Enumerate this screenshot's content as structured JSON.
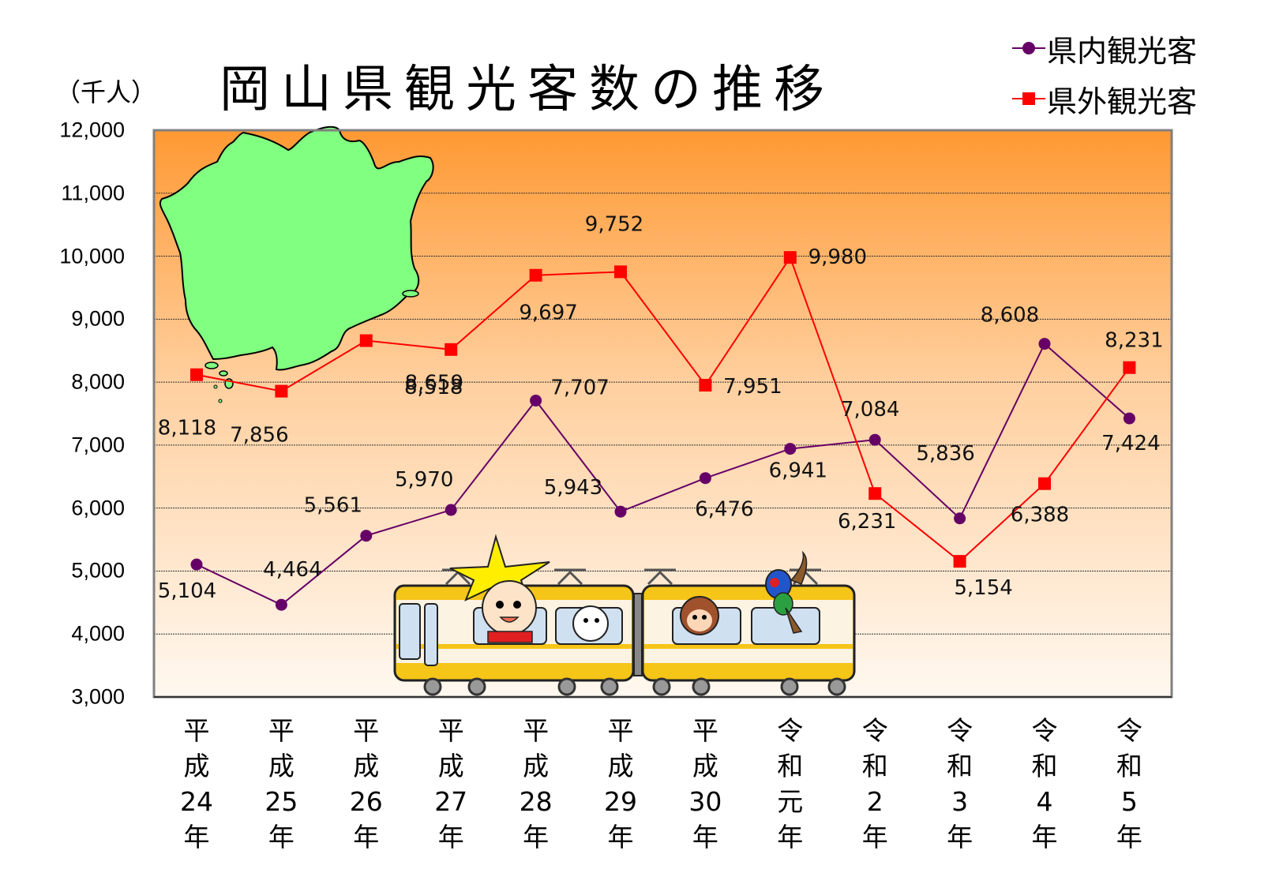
{
  "title": "岡山県観光客数の推移",
  "unit_label": "（千人）",
  "legend": [
    {
      "label": "県内観光客",
      "color": "#660066",
      "marker": "circle"
    },
    {
      "label": "県外観光客",
      "color": "#ff0000",
      "marker": "square"
    }
  ],
  "colors": {
    "in_pref": "#660066",
    "out_pref": "#ff0000",
    "bg_top": "#ff9933",
    "bg_bottom": "#fff8f0",
    "map_fill": "#80ff80",
    "frame": "#808080"
  },
  "yticks": [
    "12,000",
    "11,000",
    "10,000",
    "9,000",
    "8,000",
    "7,000",
    "6,000",
    "5,000",
    "4,000",
    "3,000"
  ],
  "xticks": [
    [
      "平",
      "成",
      "24",
      "年"
    ],
    [
      "平",
      "成",
      "25",
      "年"
    ],
    [
      "平",
      "成",
      "26",
      "年"
    ],
    [
      "平",
      "成",
      "27",
      "年"
    ],
    [
      "平",
      "成",
      "28",
      "年"
    ],
    [
      "平",
      "成",
      "29",
      "年"
    ],
    [
      "平",
      "成",
      "30",
      "年"
    ],
    [
      "令",
      "和",
      "元",
      "年"
    ],
    [
      "令",
      "和",
      "2",
      "年"
    ],
    [
      "令",
      "和",
      "3",
      "年"
    ],
    [
      "令",
      "和",
      "4",
      "年"
    ],
    [
      "令",
      "和",
      "5",
      "年"
    ]
  ],
  "chart_data": {
    "type": "line",
    "title": "岡山県観光客数の推移",
    "xlabel": "",
    "ylabel": "（千人）",
    "ylim": [
      3000,
      12000
    ],
    "grid": true,
    "legend_position": "top-right",
    "categories": [
      "平成24年",
      "平成25年",
      "平成26年",
      "平成27年",
      "平成28年",
      "平成29年",
      "平成30年",
      "令和元年",
      "令和2年",
      "令和3年",
      "令和4年",
      "令和5年"
    ],
    "series": [
      {
        "name": "県内観光客",
        "color": "#660066",
        "marker": "circle",
        "values": [
          5104,
          4464,
          5561,
          5970,
          7707,
          5943,
          6476,
          6941,
          7084,
          5836,
          8608,
          7424
        ],
        "labels": [
          "5,104",
          "4,464",
          "5,561",
          "5,970",
          "7,707",
          "5,943",
          "6,476",
          "6,941",
          "7,084",
          "5,836",
          "8,608",
          "7,424"
        ]
      },
      {
        "name": "県外観光客",
        "color": "#ff0000",
        "marker": "square",
        "values": [
          8118,
          7856,
          8659,
          8518,
          9697,
          9752,
          7951,
          9980,
          6231,
          5154,
          6388,
          8231
        ],
        "labels": [
          "8,118",
          "7,856",
          "8,659",
          "8,518",
          "9,697",
          "9,752",
          "7,951",
          "9,980",
          "6,231",
          "5,154",
          "6,388",
          "8,231"
        ]
      }
    ]
  }
}
